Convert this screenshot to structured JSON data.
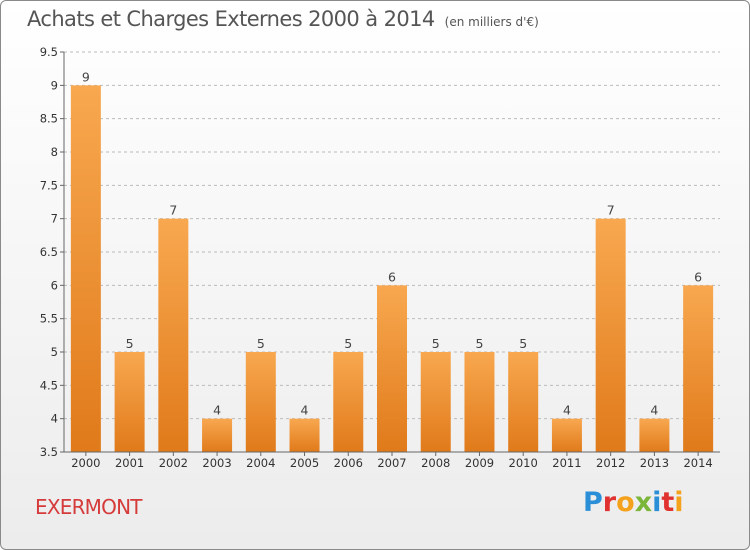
{
  "title": "Achats et Charges Externes 2000 à 2014",
  "unit_note": "(en milliers d'€)",
  "town": "EXERMONT",
  "logo": {
    "text": "Proxiti",
    "letters": [
      {
        "ch": "P",
        "color": "#2a8fd6"
      },
      {
        "ch": "r",
        "color": "#e0332f"
      },
      {
        "ch": "o",
        "color": "#f4a11c"
      },
      {
        "ch": "x",
        "color": "#79b63a"
      },
      {
        "ch": "i",
        "color": "#2a8fd6"
      },
      {
        "ch": "t",
        "color": "#e0332f"
      },
      {
        "ch": "i",
        "color": "#f4a11c"
      }
    ]
  },
  "colors": {
    "bar_light": "#f8a850",
    "bar_dark": "#e07a1a",
    "grid": "#bbbbbb",
    "axis": "#666666"
  },
  "chart_data": {
    "type": "bar",
    "title": "Achats et Charges Externes 2000 à 2014",
    "subtitle": "(en milliers d'€)",
    "xlabel": "",
    "ylabel": "",
    "categories": [
      "2000",
      "2001",
      "2002",
      "2003",
      "2004",
      "2005",
      "2006",
      "2007",
      "2008",
      "2009",
      "2010",
      "2011",
      "2012",
      "2013",
      "2014"
    ],
    "values": [
      9,
      5,
      7,
      4,
      5,
      4,
      5,
      6,
      5,
      5,
      5,
      4,
      7,
      4,
      6
    ],
    "ylim": [
      3.5,
      9.5
    ],
    "yticks": [
      3.5,
      4,
      4.5,
      5,
      5.5,
      6,
      6.5,
      7,
      7.5,
      8,
      8.5,
      9,
      9.5
    ],
    "ytick_labels": [
      "3.5",
      "4",
      "4.5",
      "5",
      "5.5",
      "6",
      "6.5",
      "7",
      "7.5",
      "8",
      "8.5",
      "9",
      "9.5"
    ],
    "grid": "horizontal dashed",
    "data_labels": true
  }
}
